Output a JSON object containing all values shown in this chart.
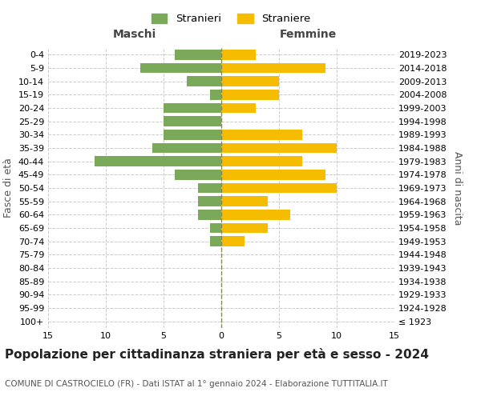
{
  "age_groups": [
    "100+",
    "95-99",
    "90-94",
    "85-89",
    "80-84",
    "75-79",
    "70-74",
    "65-69",
    "60-64",
    "55-59",
    "50-54",
    "45-49",
    "40-44",
    "35-39",
    "30-34",
    "25-29",
    "20-24",
    "15-19",
    "10-14",
    "5-9",
    "0-4"
  ],
  "birth_years": [
    "≤ 1923",
    "1924-1928",
    "1929-1933",
    "1934-1938",
    "1939-1943",
    "1944-1948",
    "1949-1953",
    "1954-1958",
    "1959-1963",
    "1964-1968",
    "1969-1973",
    "1974-1978",
    "1979-1983",
    "1984-1988",
    "1989-1993",
    "1994-1998",
    "1999-2003",
    "2004-2008",
    "2009-2013",
    "2014-2018",
    "2019-2023"
  ],
  "males": [
    0,
    0,
    0,
    0,
    0,
    0,
    1,
    1,
    2,
    2,
    2,
    4,
    11,
    6,
    5,
    5,
    5,
    1,
    3,
    7,
    4
  ],
  "females": [
    0,
    0,
    0,
    0,
    0,
    0,
    2,
    4,
    6,
    4,
    10,
    9,
    7,
    10,
    7,
    0,
    3,
    5,
    5,
    9,
    3
  ],
  "male_color": "#7aaa59",
  "female_color": "#f5bc00",
  "male_label": "Stranieri",
  "female_label": "Straniere",
  "xlim": 15,
  "title": "Popolazione per cittadinanza straniera per età e sesso - 2024",
  "subtitle": "COMUNE DI CASTROCIELO (FR) - Dati ISTAT al 1° gennaio 2024 - Elaborazione TUTTITALIA.IT",
  "ylabel_left": "Fasce di età",
  "ylabel_right": "Anni di nascita",
  "xlabel_left": "Maschi",
  "xlabel_right": "Femmine",
  "background_color": "#ffffff",
  "grid_color": "#cccccc",
  "centerline_color": "#888855",
  "tick_fontsize": 8,
  "label_fontsize": 9,
  "title_fontsize": 11,
  "subtitle_fontsize": 7.5
}
